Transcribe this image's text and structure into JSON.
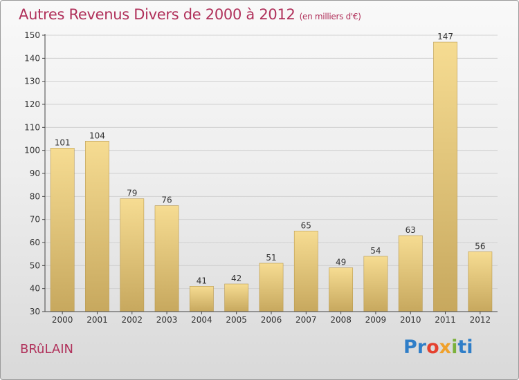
{
  "title": "Autres Revenus Divers de 2000 à 2012",
  "unit": "(en milliers d'€)",
  "place": "BRûLAIN",
  "brand": {
    "letters": [
      "Pr",
      "o",
      "x",
      "i",
      "ti"
    ],
    "colors": [
      "#2f7ec8",
      "#e5412f",
      "#f0a12b",
      "#7bb13b",
      "#2f7ec8"
    ]
  },
  "chart_data": {
    "type": "bar",
    "categories": [
      "2000",
      "2001",
      "2002",
      "2003",
      "2004",
      "2005",
      "2006",
      "2007",
      "2008",
      "2009",
      "2010",
      "2011",
      "2012"
    ],
    "values": [
      101,
      104,
      79,
      76,
      41,
      42,
      51,
      65,
      49,
      54,
      63,
      147,
      56
    ],
    "ylim": [
      30,
      150
    ],
    "yticks": [
      30,
      40,
      50,
      60,
      70,
      80,
      90,
      100,
      110,
      120,
      130,
      140,
      150
    ],
    "grid": true,
    "colors": {
      "bar_light": "#f6dc92",
      "bar_dark": "#c7a85e",
      "grid": "#d0d0d0",
      "axis": "#444444"
    }
  }
}
